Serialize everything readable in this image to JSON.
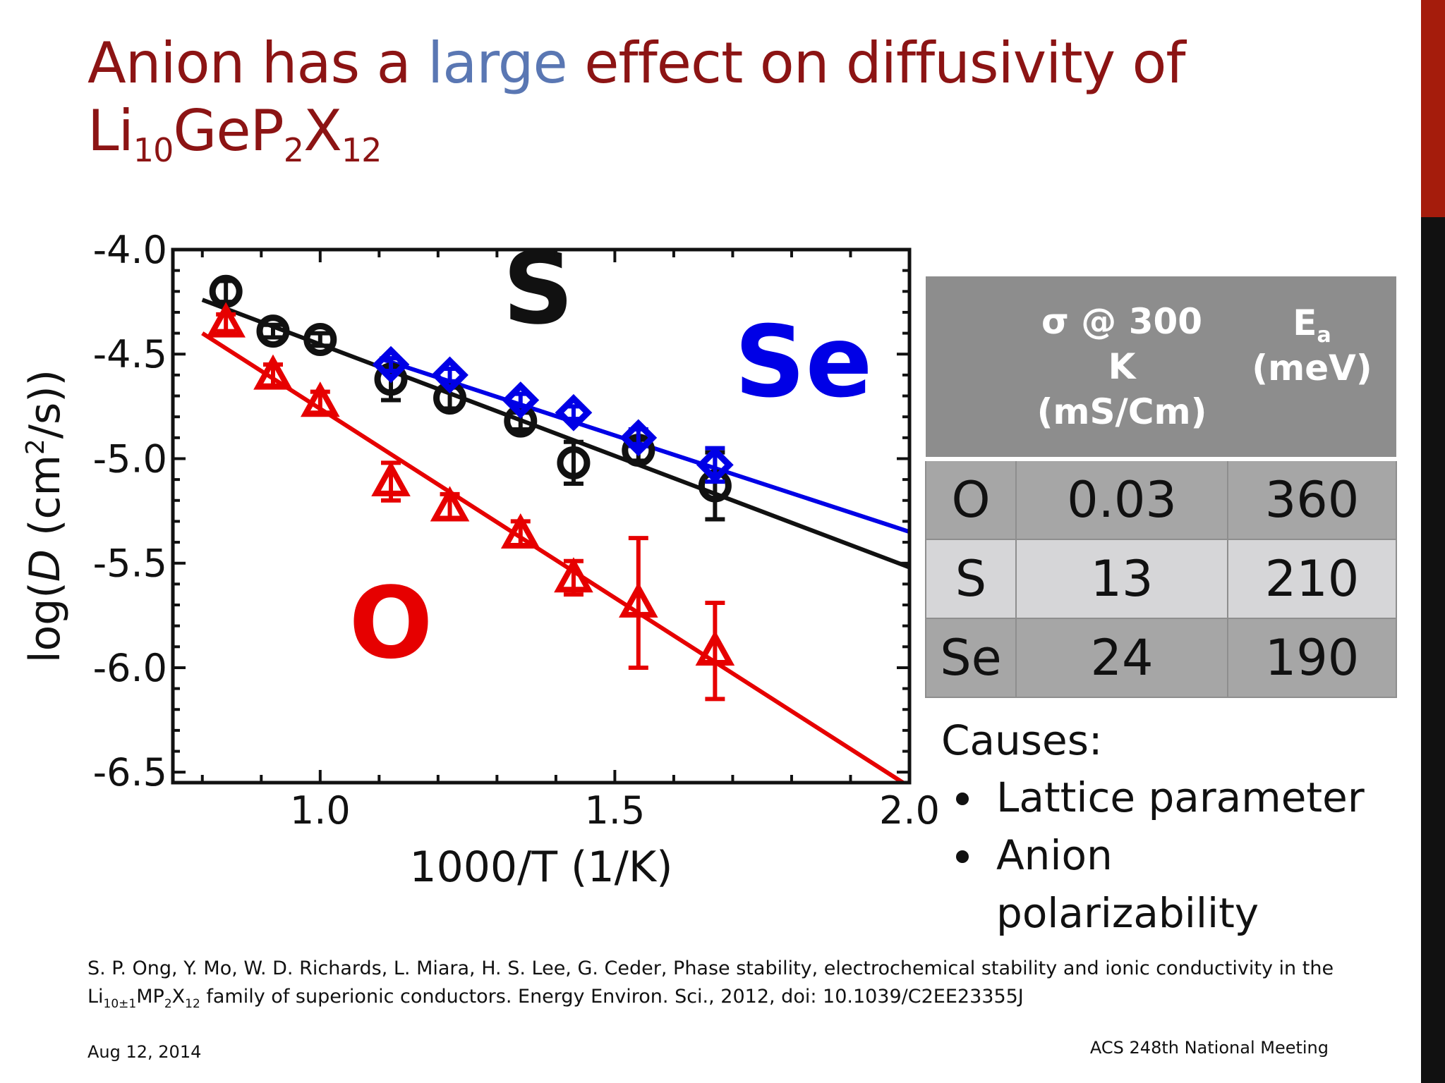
{
  "slide": {
    "title": {
      "part1": "Anion has a ",
      "highlight": "large",
      "part2": " effect on diffusivity of",
      "formula": {
        "li": "Li",
        "li_sub": "10",
        "gep": "GeP",
        "p_sub": "2",
        "x": "X",
        "x_sub": "12"
      }
    },
    "colors": {
      "title": "#8c1414",
      "highlight": "#5a77b3",
      "accent_bar": "#a51c0c"
    },
    "table": {
      "headers": {
        "sigma_line1": "σ @ 300",
        "sigma_line2": "K",
        "sigma_line3": "(mS/Cm)",
        "ea_main": "E",
        "ea_sub": "a",
        "ea_unit": "(meV)"
      },
      "rows": [
        {
          "anion": "O",
          "sigma": "0.03",
          "ea": "360"
        },
        {
          "anion": "S",
          "sigma": "13",
          "ea": "210"
        },
        {
          "anion": "Se",
          "sigma": "24",
          "ea": "190"
        }
      ]
    },
    "causes": {
      "heading": "Causes:",
      "items": [
        "Lattice parameter",
        "Anion polarizability"
      ]
    },
    "reference": {
      "line1": "S. P. Ong, Y. Mo, W. D. Richards, L. Miara, H. S. Lee, G. Ceder, Phase stability, electrochemical stability and ionic conductivity in the",
      "formula_li": "Li",
      "formula_li_sub": "10±1",
      "formula_mp": "MP",
      "formula_p_sub": "2",
      "formula_x": "X",
      "formula_x_sub": "12",
      "line2_rest": " family of superionic conductors. Energy Environ. Sci., 2012, doi: 10.1039/C2EE23355J"
    },
    "footer": {
      "date": "Aug 12, 2014",
      "meeting": "ACS 248th National Meeting"
    }
  },
  "chart_data": {
    "type": "scatter",
    "title": "",
    "xlabel": "1000/T (1/K)",
    "ylabel": "log(D (cm²/s))",
    "ylabel_parts": {
      "pre": "log(",
      "italic": "D",
      "mid": " (cm",
      "sup": "2",
      "post": "/s))"
    },
    "xlim": [
      0.75,
      2.0
    ],
    "ylim": [
      -6.55,
      -4.0
    ],
    "x_ticks": [
      1.0,
      1.5,
      2.0
    ],
    "x_tick_labels": [
      "1.0",
      "1.5",
      "2.0"
    ],
    "y_ticks": [
      -4.0,
      -4.5,
      -5.0,
      -5.5,
      -6.0,
      -6.5
    ],
    "y_tick_labels": [
      "-4.0",
      "-4.5",
      "-5.0",
      "-5.5",
      "-6.0",
      "-6.5"
    ],
    "series": [
      {
        "name": "S",
        "color": "#111111",
        "marker": "circle",
        "label_color": "#111111",
        "x": [
          0.84,
          0.92,
          1.0,
          1.12,
          1.22,
          1.34,
          1.43,
          1.54,
          1.67
        ],
        "y": [
          -4.2,
          -4.39,
          -4.43,
          -4.62,
          -4.71,
          -4.82,
          -5.02,
          -4.96,
          -5.13
        ],
        "err": [
          0.05,
          0.03,
          0.03,
          0.1,
          0.05,
          0.04,
          0.1,
          0.05,
          0.16
        ],
        "fit": {
          "x": [
            0.8,
            2.0
          ],
          "y": [
            -4.24,
            -5.52
          ]
        }
      },
      {
        "name": "Se",
        "color": "#0000e6",
        "marker": "diamond",
        "label_color": "#0000e6",
        "x": [
          1.12,
          1.22,
          1.34,
          1.43,
          1.54,
          1.67
        ],
        "y": [
          -4.55,
          -4.6,
          -4.72,
          -4.78,
          -4.9,
          -5.03
        ],
        "err": [
          0.03,
          0.03,
          0.03,
          0.03,
          0.04,
          0.08
        ],
        "fit": {
          "x": [
            1.1,
            2.0
          ],
          "y": [
            -4.52,
            -5.35
          ]
        }
      },
      {
        "name": "O",
        "color": "#e60000",
        "marker": "triangle",
        "label_color": "#e60000",
        "x": [
          0.84,
          0.92,
          1.0,
          1.12,
          1.22,
          1.34,
          1.43,
          1.54,
          1.67
        ],
        "y": [
          -4.35,
          -4.6,
          -4.73,
          -5.11,
          -5.23,
          -5.36,
          -5.57,
          -5.69,
          -5.92
        ],
        "err": [
          0.04,
          0.05,
          0.05,
          0.09,
          0.06,
          0.06,
          0.08,
          0.31,
          0.23
        ],
        "fit": {
          "x": [
            0.8,
            2.0
          ],
          "y": [
            -4.4,
            -6.57
          ]
        }
      }
    ],
    "annotations": [
      {
        "text": "S",
        "x": 1.37,
        "y": -4.35,
        "color": "#111111"
      },
      {
        "text": "Se",
        "x": 1.82,
        "y": -4.7,
        "color": "#0000e6"
      },
      {
        "text": "O",
        "x": 1.12,
        "y": -5.95,
        "color": "#e60000"
      }
    ]
  }
}
